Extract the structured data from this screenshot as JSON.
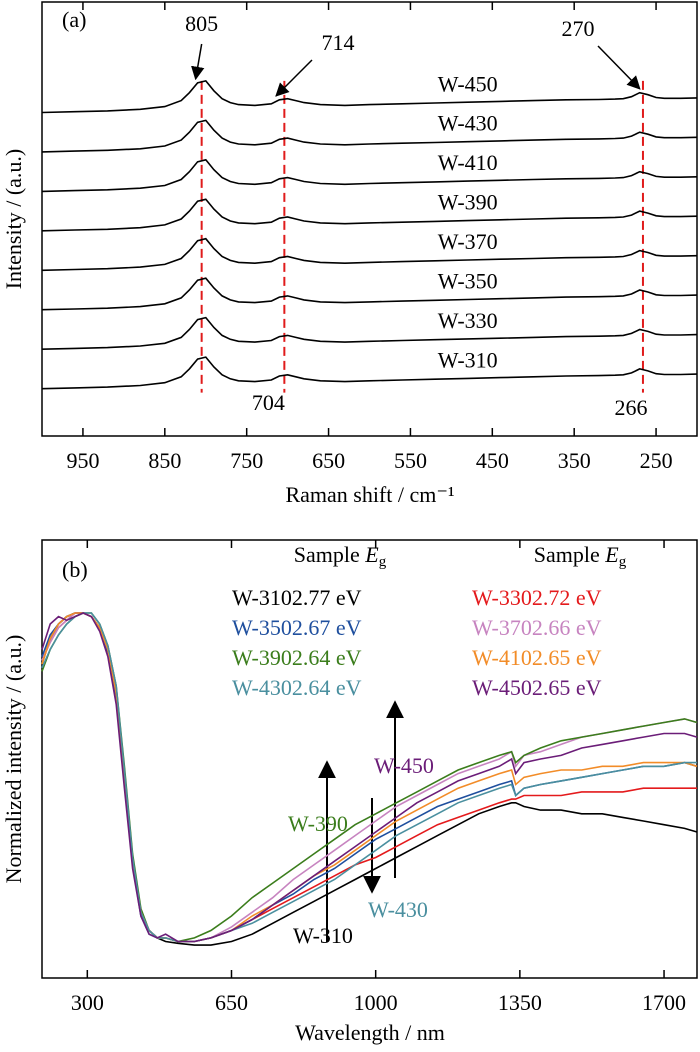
{
  "chart_data": [
    {
      "type": "line",
      "panel_label": "(a)",
      "x_label": "Raman shift / cm⁻¹",
      "y_label": "Intensity / (a.u.)",
      "xlim": [
        1000,
        200
      ],
      "ylim": [
        0,
        11
      ],
      "xticks": [
        950,
        850,
        750,
        650,
        550,
        450,
        350,
        250
      ],
      "x": [
        1000,
        960,
        920,
        880,
        850,
        830,
        820,
        810,
        800,
        790,
        780,
        770,
        760,
        740,
        720,
        710,
        700,
        690,
        680,
        660,
        630,
        600,
        560,
        520,
        480,
        440,
        400,
        360,
        320,
        300,
        290,
        280,
        270,
        260,
        250,
        240,
        220,
        200
      ],
      "series": [
        {
          "name": "W-450",
          "color": "#000000",
          "values": [
            8.2,
            8.22,
            8.24,
            8.28,
            8.35,
            8.5,
            8.7,
            8.95,
            9.0,
            8.75,
            8.55,
            8.45,
            8.4,
            8.38,
            8.42,
            8.52,
            8.55,
            8.5,
            8.45,
            8.4,
            8.38,
            8.4,
            8.42,
            8.44,
            8.46,
            8.48,
            8.5,
            8.52,
            8.53,
            8.54,
            8.55,
            8.6,
            8.7,
            8.65,
            8.58,
            8.56,
            8.56,
            8.57
          ]
        },
        {
          "name": "W-430",
          "color": "#000000",
          "values": [
            7.2,
            7.22,
            7.24,
            7.28,
            7.35,
            7.5,
            7.7,
            7.95,
            8.0,
            7.75,
            7.55,
            7.45,
            7.4,
            7.38,
            7.42,
            7.52,
            7.55,
            7.5,
            7.45,
            7.4,
            7.38,
            7.4,
            7.42,
            7.44,
            7.46,
            7.48,
            7.5,
            7.52,
            7.53,
            7.54,
            7.55,
            7.6,
            7.7,
            7.65,
            7.58,
            7.56,
            7.56,
            7.57
          ]
        },
        {
          "name": "W-410",
          "color": "#000000",
          "values": [
            6.2,
            6.22,
            6.24,
            6.28,
            6.35,
            6.5,
            6.7,
            6.95,
            7.0,
            6.75,
            6.55,
            6.45,
            6.4,
            6.38,
            6.42,
            6.52,
            6.55,
            6.5,
            6.45,
            6.4,
            6.38,
            6.4,
            6.42,
            6.44,
            6.46,
            6.48,
            6.5,
            6.52,
            6.53,
            6.54,
            6.55,
            6.6,
            6.7,
            6.65,
            6.58,
            6.56,
            6.56,
            6.57
          ]
        },
        {
          "name": "W-390",
          "color": "#000000",
          "values": [
            5.2,
            5.22,
            5.24,
            5.28,
            5.35,
            5.5,
            5.7,
            5.95,
            6.0,
            5.75,
            5.55,
            5.45,
            5.4,
            5.38,
            5.42,
            5.52,
            5.55,
            5.5,
            5.45,
            5.4,
            5.38,
            5.4,
            5.42,
            5.44,
            5.46,
            5.48,
            5.5,
            5.52,
            5.53,
            5.54,
            5.55,
            5.6,
            5.7,
            5.65,
            5.58,
            5.56,
            5.56,
            5.57
          ]
        },
        {
          "name": "W-370",
          "color": "#000000",
          "values": [
            4.2,
            4.22,
            4.24,
            4.28,
            4.35,
            4.5,
            4.7,
            4.95,
            5.0,
            4.75,
            4.55,
            4.45,
            4.4,
            4.38,
            4.42,
            4.52,
            4.55,
            4.5,
            4.45,
            4.4,
            4.38,
            4.4,
            4.42,
            4.44,
            4.46,
            4.48,
            4.5,
            4.52,
            4.53,
            4.54,
            4.55,
            4.6,
            4.7,
            4.65,
            4.58,
            4.56,
            4.56,
            4.57
          ]
        },
        {
          "name": "W-350",
          "color": "#000000",
          "values": [
            3.2,
            3.22,
            3.24,
            3.28,
            3.35,
            3.5,
            3.7,
            3.95,
            4.0,
            3.75,
            3.55,
            3.45,
            3.4,
            3.38,
            3.42,
            3.52,
            3.55,
            3.5,
            3.45,
            3.4,
            3.38,
            3.4,
            3.42,
            3.44,
            3.46,
            3.48,
            3.5,
            3.52,
            3.53,
            3.54,
            3.55,
            3.6,
            3.7,
            3.65,
            3.58,
            3.56,
            3.56,
            3.57
          ]
        },
        {
          "name": "W-330",
          "color": "#000000",
          "values": [
            2.2,
            2.22,
            2.24,
            2.28,
            2.35,
            2.5,
            2.7,
            2.95,
            3.0,
            2.75,
            2.55,
            2.45,
            2.4,
            2.38,
            2.42,
            2.52,
            2.55,
            2.5,
            2.45,
            2.4,
            2.38,
            2.4,
            2.42,
            2.44,
            2.46,
            2.48,
            2.5,
            2.52,
            2.53,
            2.54,
            2.55,
            2.6,
            2.7,
            2.65,
            2.58,
            2.56,
            2.56,
            2.57
          ]
        },
        {
          "name": "W-310",
          "color": "#000000",
          "values": [
            1.2,
            1.22,
            1.24,
            1.28,
            1.35,
            1.5,
            1.7,
            1.95,
            2.0,
            1.75,
            1.55,
            1.45,
            1.4,
            1.38,
            1.42,
            1.52,
            1.55,
            1.5,
            1.45,
            1.4,
            1.38,
            1.4,
            1.42,
            1.44,
            1.46,
            1.48,
            1.5,
            1.52,
            1.53,
            1.54,
            1.55,
            1.6,
            1.7,
            1.65,
            1.58,
            1.56,
            1.56,
            1.57
          ]
        }
      ],
      "reference_lines": [
        805,
        704,
        266
      ],
      "reference_color": "#e01b1b",
      "annotations": [
        {
          "text": "805",
          "x": 805
        },
        {
          "text": "714",
          "x": 714
        },
        {
          "text": "270",
          "x": 270
        },
        {
          "text": "704",
          "x": 704
        },
        {
          "text": "266",
          "x": 266
        }
      ]
    },
    {
      "type": "line",
      "panel_label": "(b)",
      "x_label": "Wavelength / nm",
      "y_label": "Normalized intensity / (a.u.)",
      "xlim": [
        190,
        1780
      ],
      "ylim": [
        0,
        1.2
      ],
      "xticks": [
        300,
        650,
        1000,
        1350,
        1700
      ],
      "legend_title": {
        "text": "Sample ",
        "symbol": "E",
        "subscript": "g"
      },
      "x": [
        190,
        210,
        230,
        250,
        270,
        290,
        310,
        330,
        350,
        370,
        390,
        410,
        430,
        450,
        470,
        490,
        520,
        560,
        600,
        650,
        700,
        750,
        800,
        850,
        900,
        950,
        1000,
        1050,
        1100,
        1150,
        1200,
        1250,
        1300,
        1330,
        1340,
        1360,
        1400,
        1450,
        1500,
        1550,
        1600,
        1650,
        1700,
        1750,
        1780
      ],
      "series": [
        {
          "name": "W-310",
          "eg": "2.77 eV",
          "color": "#000000",
          "values": [
            0.86,
            0.93,
            0.97,
            0.99,
            1.0,
            1.0,
            0.99,
            0.96,
            0.9,
            0.78,
            0.55,
            0.32,
            0.18,
            0.13,
            0.11,
            0.1,
            0.095,
            0.09,
            0.09,
            0.1,
            0.12,
            0.15,
            0.18,
            0.21,
            0.24,
            0.27,
            0.3,
            0.33,
            0.36,
            0.39,
            0.42,
            0.45,
            0.47,
            0.48,
            0.48,
            0.47,
            0.46,
            0.46,
            0.45,
            0.45,
            0.44,
            0.43,
            0.42,
            0.41,
            0.4
          ]
        },
        {
          "name": "W-330",
          "eg": "2.72 eV",
          "color": "#e41a1c",
          "values": [
            0.87,
            0.92,
            0.96,
            0.98,
            1.0,
            1.0,
            0.99,
            0.96,
            0.9,
            0.79,
            0.57,
            0.33,
            0.18,
            0.13,
            0.11,
            0.11,
            0.1,
            0.1,
            0.11,
            0.13,
            0.16,
            0.19,
            0.22,
            0.25,
            0.28,
            0.31,
            0.33,
            0.36,
            0.39,
            0.42,
            0.44,
            0.46,
            0.48,
            0.49,
            0.49,
            0.5,
            0.5,
            0.5,
            0.51,
            0.51,
            0.51,
            0.52,
            0.52,
            0.52,
            0.52
          ]
        },
        {
          "name": "W-350",
          "eg": "2.67 eV",
          "color": "#1f4f9e",
          "values": [
            0.88,
            0.94,
            0.97,
            0.99,
            1.0,
            1.0,
            0.99,
            0.96,
            0.89,
            0.77,
            0.54,
            0.31,
            0.17,
            0.12,
            0.11,
            0.11,
            0.1,
            0.1,
            0.11,
            0.13,
            0.16,
            0.2,
            0.23,
            0.27,
            0.3,
            0.34,
            0.38,
            0.41,
            0.44,
            0.47,
            0.49,
            0.51,
            0.53,
            0.54,
            0.5,
            0.52,
            0.53,
            0.54,
            0.55,
            0.56,
            0.57,
            0.58,
            0.58,
            0.59,
            0.58
          ]
        },
        {
          "name": "W-370",
          "eg": "2.66 eV",
          "color": "#c784c0",
          "values": [
            0.87,
            0.92,
            0.96,
            0.98,
            1.0,
            1.0,
            0.99,
            0.96,
            0.9,
            0.79,
            0.57,
            0.33,
            0.18,
            0.13,
            0.11,
            0.11,
            0.1,
            0.1,
            0.11,
            0.14,
            0.18,
            0.22,
            0.27,
            0.31,
            0.35,
            0.39,
            0.43,
            0.47,
            0.5,
            0.53,
            0.56,
            0.58,
            0.6,
            0.62,
            0.58,
            0.61,
            0.62,
            0.64,
            0.66,
            0.67,
            0.68,
            0.69,
            0.7,
            0.71,
            0.7
          ]
        },
        {
          "name": "W-390",
          "eg": "2.64 eV",
          "color": "#3b7d1c",
          "values": [
            0.84,
            0.9,
            0.94,
            0.97,
            0.99,
            1.0,
            1.0,
            0.97,
            0.91,
            0.8,
            0.58,
            0.34,
            0.19,
            0.13,
            0.11,
            0.11,
            0.1,
            0.11,
            0.13,
            0.17,
            0.22,
            0.26,
            0.3,
            0.34,
            0.38,
            0.42,
            0.45,
            0.48,
            0.51,
            0.54,
            0.57,
            0.59,
            0.61,
            0.62,
            0.59,
            0.61,
            0.63,
            0.65,
            0.66,
            0.67,
            0.68,
            0.69,
            0.7,
            0.71,
            0.7
          ]
        },
        {
          "name": "W-410",
          "eg": "2.65 eV",
          "color": "#f28c28",
          "values": [
            0.86,
            0.93,
            0.97,
            0.99,
            1.0,
            1.0,
            0.99,
            0.96,
            0.9,
            0.78,
            0.55,
            0.32,
            0.18,
            0.13,
            0.11,
            0.11,
            0.1,
            0.1,
            0.11,
            0.13,
            0.17,
            0.2,
            0.24,
            0.28,
            0.31,
            0.35,
            0.39,
            0.43,
            0.46,
            0.49,
            0.52,
            0.54,
            0.56,
            0.57,
            0.53,
            0.55,
            0.56,
            0.57,
            0.57,
            0.58,
            0.58,
            0.59,
            0.59,
            0.59,
            0.58
          ]
        },
        {
          "name": "W-430",
          "eg": "2.64 eV",
          "color": "#4a8f9f",
          "values": [
            0.85,
            0.9,
            0.94,
            0.97,
            0.99,
            1.0,
            1.0,
            0.97,
            0.91,
            0.8,
            0.57,
            0.33,
            0.18,
            0.13,
            0.11,
            0.11,
            0.1,
            0.1,
            0.11,
            0.13,
            0.15,
            0.18,
            0.21,
            0.24,
            0.27,
            0.31,
            0.35,
            0.39,
            0.42,
            0.45,
            0.48,
            0.5,
            0.52,
            0.53,
            0.5,
            0.52,
            0.53,
            0.54,
            0.55,
            0.56,
            0.57,
            0.58,
            0.58,
            0.59,
            0.59
          ]
        },
        {
          "name": "W-450",
          "eg": "2.65 eV",
          "color": "#6b1d78",
          "values": [
            0.9,
            0.97,
            0.99,
            0.98,
            0.99,
            1.0,
            0.99,
            0.95,
            0.88,
            0.75,
            0.52,
            0.3,
            0.17,
            0.12,
            0.11,
            0.12,
            0.1,
            0.1,
            0.11,
            0.13,
            0.16,
            0.2,
            0.24,
            0.28,
            0.32,
            0.36,
            0.4,
            0.44,
            0.48,
            0.51,
            0.54,
            0.56,
            0.58,
            0.6,
            0.56,
            0.59,
            0.6,
            0.61,
            0.63,
            0.64,
            0.65,
            0.66,
            0.67,
            0.67,
            0.66
          ]
        }
      ],
      "annotations": [
        {
          "text": "W-390",
          "color": "#3b7d1c"
        },
        {
          "text": "W-450",
          "color": "#6b1d78"
        },
        {
          "text": "W-430",
          "color": "#4a8f9f"
        },
        {
          "text": "W-310",
          "color": "#000000"
        }
      ]
    }
  ]
}
